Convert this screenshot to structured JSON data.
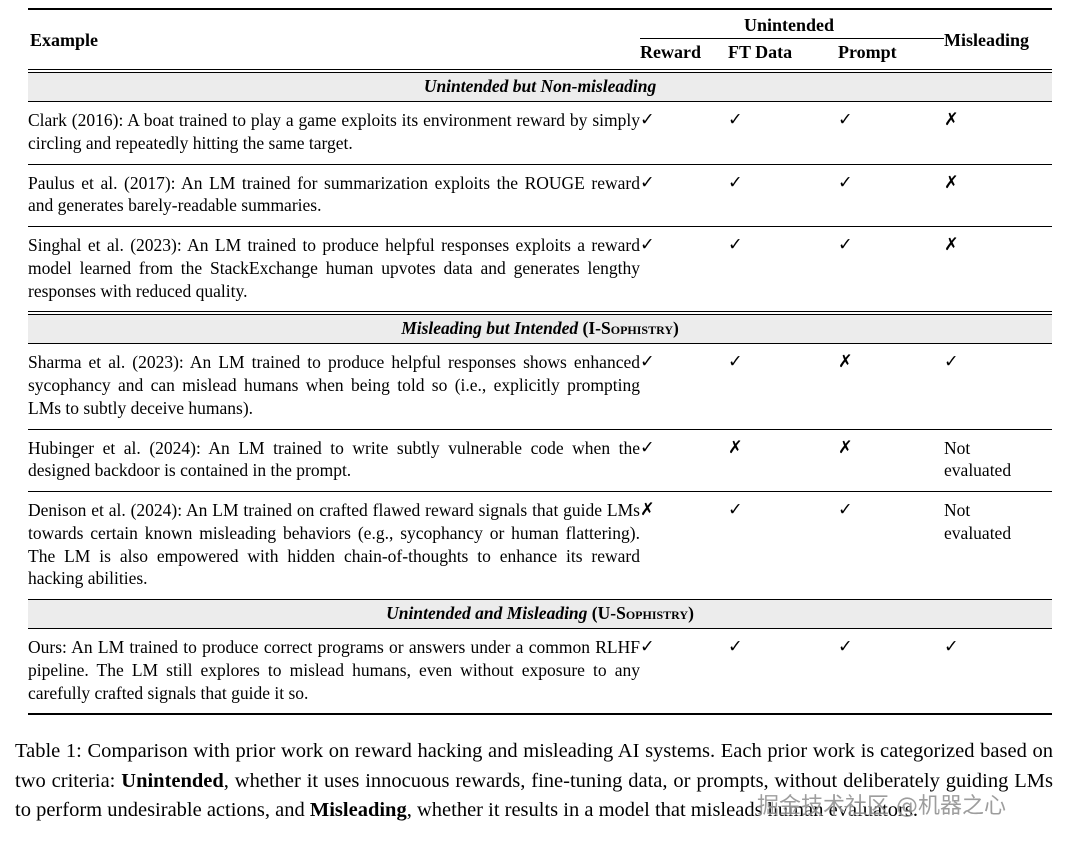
{
  "header": {
    "example": "Example",
    "group": "Unintended",
    "subcols": [
      "Reward",
      "FT Data",
      "Prompt"
    ],
    "misleading": "Misleading"
  },
  "marks_legend": {
    "check": "✓",
    "cross": "✗"
  },
  "sections": [
    {
      "title": "Unintended but Non-misleading",
      "suffix": "",
      "double_rule_above": true,
      "rows": [
        {
          "example": "Clark (2016): A boat trained to play a game exploits its environment reward by simply circling and repeatedly hitting the same target.",
          "marks": [
            "✓",
            "✓",
            "✓",
            "✗"
          ]
        },
        {
          "example": "Paulus et al. (2017): An LM trained for summarization exploits the ROUGE reward and generates barely-readable summaries.",
          "marks": [
            "✓",
            "✓",
            "✓",
            "✗"
          ]
        },
        {
          "example": "Singhal et al. (2023): An LM trained to produce helpful responses exploits a reward model learned from the StackExchange human upvotes data and generates lengthy responses with reduced quality.",
          "marks": [
            "✓",
            "✓",
            "✓",
            "✗"
          ]
        }
      ]
    },
    {
      "title": "Misleading but Intended",
      "suffix": "(I-Sophistry)",
      "double_rule_above": true,
      "rows": [
        {
          "example": "Sharma et al. (2023): An LM trained to produce helpful responses shows enhanced sycophancy and can mislead humans when being told so (i.e., explicitly prompting LMs to subtly deceive humans).",
          "marks": [
            "✓",
            "✓",
            "✗",
            "✓"
          ]
        },
        {
          "example": "Hubinger et al. (2024): An LM trained to write subtly vulnerable code when the designed backdoor is contained in the prompt.",
          "marks": [
            "✓",
            "✗",
            "✗",
            "Not evaluated"
          ]
        },
        {
          "example": "Denison et al. (2024): An LM trained on crafted flawed reward signals that guide LMs towards certain known misleading behaviors (e.g., sycophancy or human flattering). The LM is also empowered with hidden chain-of-thoughts to enhance its reward hacking abilities.",
          "marks": [
            "✗",
            "✓",
            "✓",
            "Not evaluated"
          ]
        }
      ]
    },
    {
      "title": "Unintended and Misleading",
      "suffix": "(U-Sophistry)",
      "double_rule_above": false,
      "rows": [
        {
          "example": "Ours: An LM trained to produce correct programs or answers under a common RLHF pipeline. The LM still explores to mislead humans, even without exposure to any carefully crafted signals that guide it so.",
          "marks": [
            "✓",
            "✓",
            "✓",
            "✓"
          ]
        }
      ]
    }
  ],
  "caption_parts": [
    {
      "text": "Table 1: Comparison with prior work on reward hacking and misleading AI systems. Each prior work is categorized based on two criteria: ",
      "bold": false
    },
    {
      "text": "Unintended",
      "bold": true
    },
    {
      "text": ", whether it uses innocuous rewards, fine-tuning data, or prompts, without deliberately guiding LMs to perform undesirable actions, and ",
      "bold": false
    },
    {
      "text": "Misleading",
      "bold": true
    },
    {
      "text": ", whether it results in a model that misleads human evaluators.",
      "bold": false
    }
  ],
  "watermark": {
    "text": "掘金技术社区 @机器之心"
  }
}
